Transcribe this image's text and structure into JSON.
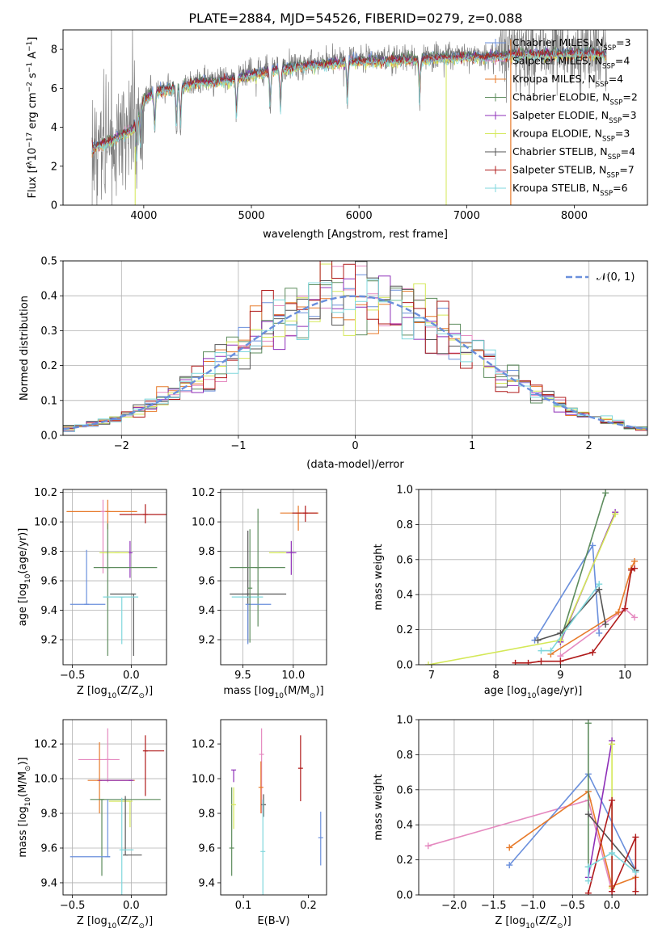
{
  "figure": {
    "title": "PLATE=2884, MJD=54526, FIBERID=0279, z=0.088"
  },
  "colors": {
    "chabrier_miles": "#6a8fdc",
    "salpeter_miles": "#e58ac0",
    "kroupa_miles": "#e77a2a",
    "chabrier_elodie": "#5d8c5d",
    "salpeter_elodie": "#8e2fb8",
    "kroupa_elodie": "#d4e857",
    "chabrier_stelib": "#555555",
    "salpeter_stelib": "#b01b1b",
    "kroupa_stelib": "#7fd7dc",
    "data": "#808080"
  },
  "chart_data": [
    {
      "id": "spectrum",
      "type": "line",
      "xlabel": "wavelength [Angstrom, rest frame]",
      "ylabel_parts": [
        "Flux [f",
        "λ",
        "10",
        "−17",
        " erg cm",
        "−2",
        " s",
        "−1",
        " A",
        "−1",
        "]"
      ],
      "xlim": [
        3250,
        8680
      ],
      "ylim": [
        0,
        9
      ],
      "xticks": [
        4000,
        5000,
        6000,
        7000,
        8000
      ],
      "yticks": [
        0,
        2,
        4,
        6,
        8
      ],
      "grid": false,
      "legend_position": "top-right",
      "legend": [
        {
          "model": "Chabrier MILES",
          "n": "3",
          "color": "#6a8fdc"
        },
        {
          "model": "Salpeter MILES",
          "n": "4",
          "color": "#e58ac0"
        },
        {
          "model": "Kroupa MILES",
          "n": "4",
          "color": "#e77a2a"
        },
        {
          "model": "Chabrier ELODIE",
          "n": "2",
          "color": "#5d8c5d"
        },
        {
          "model": "Salpeter ELODIE",
          "n": "3",
          "color": "#8e2fb8"
        },
        {
          "model": "Kroupa ELODIE",
          "n": "3",
          "color": "#d4e857"
        },
        {
          "model": "Chabrier STELIB",
          "n": "4",
          "color": "#555555"
        },
        {
          "model": "Salpeter STELIB",
          "n": "7",
          "color": "#b01b1b"
        },
        {
          "model": "Kroupa STELIB",
          "n": "6",
          "color": "#7fd7dc"
        }
      ],
      "legend_n_prefix": "N",
      "legend_n_sub": "SSP",
      "continuum_x": [
        3500,
        3700,
        3900,
        4000,
        4100,
        4300,
        4500,
        4800,
        5000,
        5200,
        5400,
        5600,
        5800,
        6000,
        6200,
        6400,
        6600,
        6800,
        7000,
        7200,
        7400,
        7600,
        7800,
        8000,
        8200,
        8300
      ],
      "continuum_y": [
        3.0,
        3.4,
        4.0,
        5.5,
        5.9,
        6.1,
        6.4,
        6.5,
        6.8,
        7.0,
        7.2,
        7.3,
        7.4,
        7.5,
        7.5,
        7.55,
        7.6,
        7.65,
        7.7,
        7.7,
        7.8,
        7.85,
        7.85,
        7.9,
        7.9,
        7.8
      ]
    },
    {
      "id": "residuals",
      "type": "histogram",
      "xlabel": "(data-model)/error",
      "ylabel": "Normed distribution",
      "xlim": [
        -2.5,
        2.5
      ],
      "ylim": [
        0,
        0.5
      ],
      "xticks": [
        -2,
        -1,
        0,
        1,
        2
      ],
      "xtick_labels": [
        "−2",
        "−1",
        "0",
        "1",
        "2"
      ],
      "yticks": [
        0.0,
        0.1,
        0.2,
        0.3,
        0.4,
        0.5
      ],
      "ytick_labels": [
        "0.0",
        "0.1",
        "0.2",
        "0.3",
        "0.4",
        "0.5"
      ],
      "grid": true,
      "legend_position": "top-right",
      "legend_label": "𝒩(0, 1)",
      "bins": 50,
      "reference_curve": "gaussian mean 0, sigma 1"
    },
    {
      "id": "age-vs-Z",
      "type": "errorbar",
      "xlabel_parts": [
        "Z [log",
        "10",
        "(Z/Z",
        "⊙",
        ")]"
      ],
      "ylabel_parts": [
        "age  [log",
        "10",
        "(age/yr)]"
      ],
      "xlim": [
        -0.58,
        0.3
      ],
      "ylim": [
        9.03,
        10.22
      ],
      "xticks": [
        -0.5,
        0.0
      ],
      "xtick_labels": [
        "−0.5",
        "0.0"
      ],
      "yticks": [
        9.2,
        9.4,
        9.6,
        9.8,
        10.0,
        10.2
      ],
      "ytick_labels": [
        "9.2",
        "9.4",
        "9.6",
        "9.8",
        "10.0",
        "10.2"
      ],
      "grid": true,
      "points": [
        {
          "color": "#e77a2a",
          "x": -0.2,
          "y": 10.07,
          "xerr": [
            0.35,
            0.25
          ],
          "yerr": [
            0.12,
            0.08
          ]
        },
        {
          "color": "#b01b1b",
          "x": 0.12,
          "y": 10.05,
          "xerr": [
            0.22,
            0.18
          ],
          "yerr": [
            0.06,
            0.07
          ]
        },
        {
          "color": "#e58ac0",
          "x": -0.24,
          "y": 10.07,
          "xerr": [
            0.0,
            0.0
          ],
          "yerr": [
            0.42,
            0.08
          ]
        },
        {
          "color": "#8e2fb8",
          "x": -0.01,
          "y": 9.79,
          "xerr": [
            0.0,
            0.0
          ],
          "yerr": [
            0.17,
            0.08
          ]
        },
        {
          "color": "#d4e857",
          "x": -0.12,
          "y": 9.79,
          "xerr": [
            0.15,
            0.1
          ],
          "yerr": [
            0.0,
            0.0
          ]
        },
        {
          "color": "#555555",
          "x": 0.02,
          "y": 9.51,
          "xerr": [
            0.2,
            0.0
          ],
          "yerr": [
            0.42,
            0.0
          ]
        },
        {
          "color": "#5d8c5d",
          "x": -0.2,
          "y": 9.69,
          "xerr": [
            0.12,
            0.42
          ],
          "yerr": [
            0.6,
            0.3
          ]
        },
        {
          "color": "#6a8fdc",
          "x": -0.38,
          "y": 9.44,
          "xerr": [
            0.14,
            0.16
          ],
          "yerr": [
            0.0,
            0.37
          ]
        },
        {
          "color": "#7fd7dc",
          "x": -0.08,
          "y": 9.49,
          "xerr": [
            0.16,
            0.14
          ],
          "yerr": [
            0.32,
            0.0
          ]
        }
      ]
    },
    {
      "id": "age-vs-mass",
      "type": "errorbar",
      "xlabel_parts": [
        "mass [log",
        "10",
        "(M/M",
        "⊙",
        ")]"
      ],
      "xlim": [
        9.28,
        10.33
      ],
      "ylim": [
        9.03,
        10.22
      ],
      "xticks": [
        9.5,
        10.0
      ],
      "xtick_labels": [
        "9.5",
        "10.0"
      ],
      "yticks": [
        9.2,
        9.4,
        9.6,
        9.8,
        10.0,
        10.2
      ],
      "ytick_labels": [
        "9.2",
        "9.4",
        "9.6",
        "9.8",
        "10.0",
        "10.2"
      ],
      "grid": true,
      "points": [
        {
          "color": "#e77a2a",
          "x": 10.05,
          "y": 10.06,
          "xerr": [
            0.18,
            0.2
          ],
          "yerr": [
            0.12,
            0.05
          ]
        },
        {
          "color": "#b01b1b",
          "x": 10.12,
          "y": 10.06,
          "xerr": [
            0.13,
            0.12
          ],
          "yerr": [
            0.06,
            0.05
          ]
        },
        {
          "color": "#8e2fb8",
          "x": 9.98,
          "y": 9.79,
          "xerr": [
            0.05,
            0.05
          ],
          "yerr": [
            0.15,
            0.08
          ]
        },
        {
          "color": "#d4e857",
          "x": 9.88,
          "y": 9.79,
          "xerr": [
            0.12,
            0.05
          ],
          "yerr": [
            0.0,
            0.0
          ]
        },
        {
          "color": "#555555",
          "x": 9.55,
          "y": 9.51,
          "xerr": [
            0.18,
            0.38
          ],
          "yerr": [
            0.33,
            0.43
          ]
        },
        {
          "color": "#5d8c5d",
          "x": 9.65,
          "y": 9.69,
          "xerr": [
            0.28,
            0.27
          ],
          "yerr": [
            0.4,
            0.4
          ]
        },
        {
          "color": "#6a8fdc",
          "x": 9.55,
          "y": 9.44,
          "xerr": [
            0.0,
            0.23
          ],
          "yerr": [
            0.27,
            0.0
          ]
        },
        {
          "color": "#7fd7dc",
          "x": 9.55,
          "y": 9.49,
          "xerr": [
            0.16,
            0.15
          ],
          "yerr": [
            0.0,
            0.0
          ]
        },
        {
          "color": "#5d8c5d",
          "x": 9.57,
          "y": 9.55,
          "xerr": [
            0.0,
            0.0
          ],
          "yerr": [
            0.37,
            0.4
          ]
        }
      ]
    },
    {
      "id": "weight-vs-age",
      "type": "line",
      "xlabel_parts": [
        "age  [log",
        "10",
        "(age/yr)]"
      ],
      "ylabel": "mass weight",
      "xlim": [
        6.8,
        10.35
      ],
      "ylim": [
        0,
        1
      ],
      "xticks": [
        7,
        8,
        9,
        10
      ],
      "yticks": [
        0.0,
        0.2,
        0.4,
        0.6,
        0.8,
        1.0
      ],
      "ytick_labels": [
        "0.0",
        "0.2",
        "0.4",
        "0.6",
        "0.8",
        "1.0"
      ],
      "grid": true,
      "series": [
        {
          "color": "#6a8fdc",
          "x": [
            8.6,
            9.5,
            9.6
          ],
          "y": [
            0.14,
            0.68,
            0.18
          ]
        },
        {
          "color": "#e58ac0",
          "x": [
            9.0,
            10.0,
            10.15
          ],
          "y": [
            0.05,
            0.32,
            0.27
          ]
        },
        {
          "color": "#e77a2a",
          "x": [
            8.85,
            9.9,
            10.1,
            10.15
          ],
          "y": [
            0.06,
            0.3,
            0.55,
            0.59
          ]
        },
        {
          "color": "#5d8c5d",
          "x": [
            9.0,
            9.7
          ],
          "y": [
            0.14,
            0.98
          ]
        },
        {
          "color": "#8e2fb8",
          "x": [
            9.0,
            9.85
          ],
          "y": [
            0.13,
            0.87
          ]
        },
        {
          "color": "#d4e857",
          "x": [
            6.95,
            9.0,
            9.85
          ],
          "y": [
            0.0,
            0.14,
            0.86
          ]
        },
        {
          "color": "#555555",
          "x": [
            8.65,
            9.0,
            9.6,
            9.7
          ],
          "y": [
            0.14,
            0.18,
            0.43,
            0.23
          ]
        },
        {
          "color": "#b01b1b",
          "x": [
            8.3,
            8.5,
            8.7,
            9.0,
            9.5,
            10.0,
            10.1,
            10.15
          ],
          "y": [
            0.01,
            0.01,
            0.02,
            0.02,
            0.07,
            0.32,
            0.54,
            0.55
          ]
        },
        {
          "color": "#7fd7dc",
          "x": [
            8.7,
            8.85,
            9.6
          ],
          "y": [
            0.08,
            0.08,
            0.46
          ]
        }
      ]
    },
    {
      "id": "mass-vs-Z",
      "type": "errorbar",
      "xlabel_parts": [
        "Z [log",
        "10",
        "(Z/Z",
        "⊙",
        ")]"
      ],
      "ylabel_parts": [
        "mass [log",
        "10",
        "(M/M",
        "⊙",
        ")]"
      ],
      "xlim": [
        -0.58,
        0.3
      ],
      "ylim": [
        9.33,
        10.34
      ],
      "xticks": [
        -0.5,
        0.0
      ],
      "xtick_labels": [
        "−0.5",
        "0.0"
      ],
      "yticks": [
        9.4,
        9.6,
        9.8,
        10.0,
        10.2
      ],
      "ytick_labels": [
        "9.4",
        "9.6",
        "9.8",
        "10.0",
        "10.2"
      ],
      "grid": true,
      "points": [
        {
          "color": "#e58ac0",
          "x": -0.2,
          "y": 10.11,
          "xerr": [
            0.25,
            0.1
          ],
          "yerr": [
            0.13,
            0.18
          ]
        },
        {
          "color": "#b01b1b",
          "x": 0.12,
          "y": 10.16,
          "xerr": [
            0.0,
            0.16
          ],
          "yerr": [
            0.26,
            0.09
          ]
        },
        {
          "color": "#e77a2a",
          "x": -0.27,
          "y": 9.99,
          "xerr": [
            0.1,
            0.3
          ],
          "yerr": [
            0.19,
            0.22
          ]
        },
        {
          "color": "#8e2fb8",
          "x": 0.0,
          "y": 9.99,
          "xerr": [
            0.28,
            0.0
          ],
          "yerr": [
            0.0,
            0.0
          ]
        },
        {
          "color": "#5d8c5d",
          "x": -0.25,
          "y": 9.88,
          "xerr": [
            0.1,
            0.5
          ],
          "yerr": [
            0.44,
            0.0
          ]
        },
        {
          "color": "#d4e857",
          "x": -0.01,
          "y": 9.87,
          "xerr": [
            0.18,
            0.0
          ],
          "yerr": [
            0.15,
            0.0
          ]
        },
        {
          "color": "#555555",
          "x": -0.05,
          "y": 9.56,
          "xerr": [
            0.0,
            0.14
          ],
          "yerr": [
            0.0,
            0.34
          ]
        },
        {
          "color": "#6a8fdc",
          "x": -0.2,
          "y": 9.55,
          "xerr": [
            0.32,
            0.02
          ],
          "yerr": [
            0.0,
            0.33
          ]
        },
        {
          "color": "#7fd7dc",
          "x": -0.08,
          "y": 9.59,
          "xerr": [
            0.0,
            0.1
          ],
          "yerr": [
            0.27,
            0.3
          ]
        }
      ]
    },
    {
      "id": "mass-vs-EBV",
      "type": "errorbar",
      "xlabel": "E(B-V)",
      "xlim": [
        0.065,
        0.228
      ],
      "ylim": [
        9.33,
        10.34
      ],
      "xticks": [
        0.1,
        0.2
      ],
      "xtick_labels": [
        "0.1",
        "0.2"
      ],
      "yticks": [
        9.4,
        9.6,
        9.8,
        10.0,
        10.2
      ],
      "ytick_labels": [
        "9.4",
        "9.6",
        "9.8",
        "10.0",
        "10.2"
      ],
      "grid": false,
      "points": [
        {
          "color": "#8e2fb8",
          "x": 0.085,
          "y": 10.05,
          "yerr": [
            0.07,
            0.0
          ]
        },
        {
          "color": "#5d8c5d",
          "x": 0.082,
          "y": 9.6,
          "yerr": [
            0.16,
            0.35
          ]
        },
        {
          "color": "#d4e857",
          "x": 0.085,
          "y": 9.85,
          "yerr": [
            0.14,
            0.1
          ]
        },
        {
          "color": "#e58ac0",
          "x": 0.128,
          "y": 10.14,
          "yerr": [
            0.34,
            0.15
          ]
        },
        {
          "color": "#e77a2a",
          "x": 0.127,
          "y": 9.95,
          "yerr": [
            0.15,
            0.15
          ]
        },
        {
          "color": "#555555",
          "x": 0.131,
          "y": 9.85,
          "yerr": [
            0.07,
            0.06
          ]
        },
        {
          "color": "#7fd7dc",
          "x": 0.13,
          "y": 9.58,
          "yerr": [
            0.26,
            0.3
          ]
        },
        {
          "color": "#b01b1b",
          "x": 0.188,
          "y": 10.06,
          "yerr": [
            0.19,
            0.19
          ]
        },
        {
          "color": "#6a8fdc",
          "x": 0.219,
          "y": 9.66,
          "yerr": [
            0.16,
            0.15
          ]
        }
      ]
    },
    {
      "id": "weight-vs-Z",
      "type": "line",
      "xlabel_parts": [
        "Z [log",
        "10",
        "(Z/Z",
        "⊙",
        ")]"
      ],
      "ylabel": "mass weight",
      "xlim": [
        -2.45,
        0.45
      ],
      "ylim": [
        0,
        1
      ],
      "xticks": [
        -2.0,
        -1.5,
        -1.0,
        -0.5,
        0.0
      ],
      "xtick_labels": [
        "−2.0",
        "−1.5",
        "−1.0",
        "−0.5",
        "0.0"
      ],
      "yticks": [
        0.0,
        0.2,
        0.4,
        0.6,
        0.8,
        1.0
      ],
      "ytick_labels": [
        "0.0",
        "0.2",
        "0.4",
        "0.6",
        "0.8",
        "1.0"
      ],
      "grid": true,
      "series": [
        {
          "color": "#e58ac0",
          "x": [
            -2.33,
            -0.3,
            0.0
          ],
          "y": [
            0.28,
            0.54,
            0.02
          ]
        },
        {
          "color": "#6a8fdc",
          "x": [
            -1.3,
            -0.3,
            0.3
          ],
          "y": [
            0.17,
            0.69,
            0.14
          ]
        },
        {
          "color": "#e77a2a",
          "x": [
            -1.3,
            -0.3,
            0.0,
            0.3
          ],
          "y": [
            0.27,
            0.59,
            0.05,
            0.1
          ]
        },
        {
          "color": "#5d8c5d",
          "x": [
            -0.3,
            -0.3
          ],
          "y": [
            0.98,
            0.16
          ]
        },
        {
          "color": "#8e2fb8",
          "x": [
            -0.3,
            0.0
          ],
          "y": [
            0.1,
            0.88
          ]
        },
        {
          "color": "#d4e857",
          "x": [
            0.0,
            0.0
          ],
          "y": [
            0.04,
            0.86
          ]
        },
        {
          "color": "#555555",
          "x": [
            -0.3,
            0.3
          ],
          "y": [
            0.46,
            0.14
          ]
        },
        {
          "color": "#b01b1b",
          "x": [
            -0.3,
            0.0,
            0.0,
            0.3,
            0.3
          ],
          "y": [
            0.01,
            0.54,
            0.02,
            0.33,
            0.02
          ]
        },
        {
          "color": "#7fd7dc",
          "x": [
            -0.3,
            -0.3,
            0.0,
            0.3
          ],
          "y": [
            0.08,
            0.16,
            0.24,
            0.13
          ]
        }
      ]
    }
  ]
}
